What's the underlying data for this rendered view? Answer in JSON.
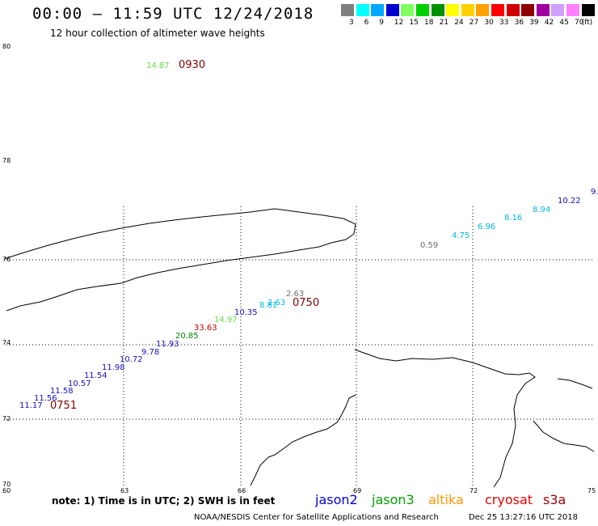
{
  "header": {
    "title": "00:00 – 11:59 UTC 12/24/2018",
    "subtitle": "12 hour collection of altimeter wave heights"
  },
  "color_scale": {
    "labels": [
      "3",
      "6",
      "9",
      "12",
      "15",
      "18",
      "21",
      "24",
      "27",
      "30",
      "33",
      "36",
      "39",
      "42",
      "45",
      "70",
      "(ft)"
    ],
    "colors": [
      "#7f7f7f",
      "#00ffff",
      "#00a8ff",
      "#0000d0",
      "#80ff60",
      "#00d000",
      "#009000",
      "#ffff00",
      "#ffd000",
      "#ffa000",
      "#ff0000",
      "#d00000",
      "#900000",
      "#a000a0",
      "#d0a0ff",
      "#ff80ff",
      "#000000"
    ]
  },
  "map": {
    "lat_labels": [
      "80",
      "78",
      "76",
      "74",
      "72",
      "70"
    ],
    "lon_labels": [
      "60",
      "63",
      "66",
      "69",
      "72",
      "75"
    ]
  },
  "observations": [
    {
      "v": "14.87",
      "c": "#66dd44"
    },
    {
      "v": "9.",
      "c": "#1010c0"
    },
    {
      "v": "10.22",
      "c": "#1010c0"
    },
    {
      "v": "8.94",
      "c": "#00b8e0"
    },
    {
      "v": "8.16",
      "c": "#00b8e0"
    },
    {
      "v": "6.96",
      "c": "#00b8e0"
    },
    {
      "v": "4.75",
      "c": "#00b8e0"
    },
    {
      "v": "0.59",
      "c": "#707070"
    },
    {
      "v": "2.63",
      "c": "#707070"
    },
    {
      "v": "2.63",
      "c": "#00b8e0"
    },
    {
      "v": "8.81",
      "c": "#00b8e0"
    },
    {
      "v": "10.35",
      "c": "#1010c0"
    },
    {
      "v": "14.97",
      "c": "#66dd44"
    },
    {
      "v": "33.63",
      "c": "#c00000"
    },
    {
      "v": "20.85",
      "c": "#008800"
    },
    {
      "v": "11.93",
      "c": "#1010c0"
    },
    {
      "v": "9.78",
      "c": "#1010c0"
    },
    {
      "v": "10.72",
      "c": "#1010c0"
    },
    {
      "v": "11.98",
      "c": "#1010c0"
    },
    {
      "v": "11.54",
      "c": "#1010c0"
    },
    {
      "v": "10.57",
      "c": "#1010c0"
    },
    {
      "v": "11.58",
      "c": "#1010c0"
    },
    {
      "v": "11.56",
      "c": "#1010c0"
    },
    {
      "v": "11.17",
      "c": "#1010c0"
    }
  ],
  "time_labels": [
    "0930",
    "0750",
    "0751"
  ],
  "time_color": "#800000",
  "footer": {
    "note": "note: 1) Time is in UTC; 2) SWH is in feet",
    "satellites": [
      {
        "name": "jason2",
        "color": "#0000dd"
      },
      {
        "name": "jason3",
        "color": "#00a000"
      },
      {
        "name": "altika",
        "color": "#ff9900"
      },
      {
        "name": "cryosat",
        "color": "#ee0000"
      },
      {
        "name": "s3a",
        "color": "#990000"
      }
    ],
    "credit": "NOAA/NESDIS Center for Satellite Applications and Research",
    "timestamp": "Dec 25 13:27:16 UTC 2018"
  }
}
